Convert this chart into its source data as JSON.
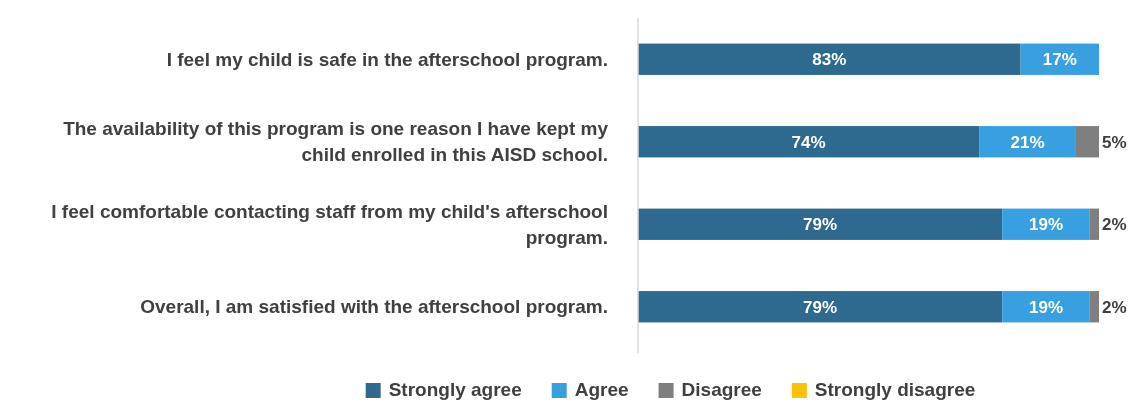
{
  "chart_data": {
    "type": "bar",
    "orientation": "horizontal",
    "stacked": true,
    "categories": [
      "I feel my child is safe in the afterschool program.",
      "The availability of this program is one reason I have kept my child enrolled in this AISD school.",
      "I feel comfortable contacting staff from my child's afterschool program.",
      "Overall, I am satisfied with the afterschool program."
    ],
    "series": [
      {
        "name": "Strongly agree",
        "color": "#2e6a90",
        "values": [
          83,
          74,
          79,
          79
        ],
        "value_labels": [
          "83%",
          "74%",
          "79%",
          "79%"
        ]
      },
      {
        "name": "Agree",
        "color": "#38a0e0",
        "values": [
          17,
          21,
          19,
          19
        ],
        "value_labels": [
          "17%",
          "21%",
          "19%",
          "19%"
        ]
      },
      {
        "name": "Disagree",
        "color": "#7f7f7f",
        "values": [
          null,
          5,
          2,
          2
        ],
        "value_labels": [
          null,
          "5%",
          "2%",
          "2%"
        ]
      },
      {
        "name": "Strongly disagree",
        "color": "#ffc000",
        "values": [
          null,
          null,
          null,
          null
        ],
        "value_labels": [
          null,
          null,
          null,
          null
        ]
      }
    ],
    "xlim": [
      0,
      100
    ],
    "tick_labels": "y",
    "legend": "bottom"
  }
}
